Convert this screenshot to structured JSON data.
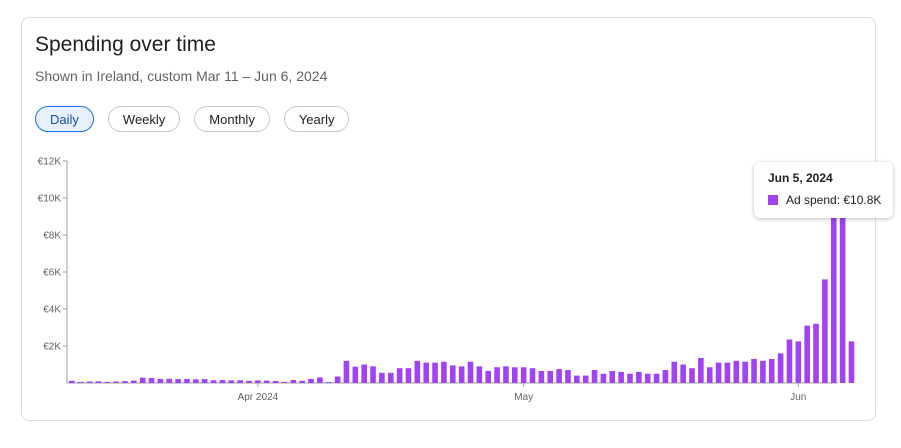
{
  "card": {
    "title": "Spending over time",
    "subtitle": "Shown in Ireland, custom Mar 11 – Jun 6, 2024"
  },
  "tabs": [
    {
      "label": "Daily",
      "active": true
    },
    {
      "label": "Weekly",
      "active": false
    },
    {
      "label": "Monthly",
      "active": false
    },
    {
      "label": "Yearly",
      "active": false
    }
  ],
  "tooltip": {
    "date": "Jun 5, 2024",
    "series_label": "Ad spend: €10.8K"
  },
  "colors": {
    "bar": "#a142f4",
    "axis": "#9aa0a6",
    "tick_text": "#5f6368"
  },
  "chart_data": {
    "type": "bar",
    "x_range": [
      "Mar 11, 2024",
      "Jun 6, 2024"
    ],
    "xticks": [
      {
        "label": "Apr 2024",
        "date": "Apr 1, 2024"
      },
      {
        "label": "May",
        "date": "May 1, 2024"
      },
      {
        "label": "Jun",
        "date": "Jun 1, 2024"
      }
    ],
    "yticks": [
      "€12K",
      "€10K",
      "€8K",
      "€6K",
      "€4K",
      "€2K"
    ],
    "ylim": [
      0,
      12000
    ],
    "grid": false,
    "series": [
      {
        "name": "Ad spend",
        "values": [
          120,
          60,
          80,
          90,
          60,
          80,
          100,
          130,
          290,
          270,
          220,
          230,
          210,
          220,
          200,
          210,
          150,
          160,
          140,
          150,
          120,
          140,
          130,
          110,
          60,
          160,
          120,
          220,
          300,
          50,
          350,
          1200,
          880,
          1000,
          900,
          550,
          550,
          800,
          800,
          1200,
          1100,
          1100,
          1150,
          950,
          900,
          1150,
          900,
          650,
          850,
          900,
          850,
          850,
          800,
          650,
          650,
          750,
          700,
          400,
          400,
          700,
          500,
          650,
          600,
          500,
          600,
          500,
          500,
          700,
          1150,
          1000,
          800,
          1350,
          850,
          1100,
          1100,
          1200,
          1150,
          1300,
          1200,
          1300,
          1600,
          2350,
          2250,
          3100,
          3200,
          5600,
          9800,
          10800,
          2250
        ]
      }
    ]
  }
}
